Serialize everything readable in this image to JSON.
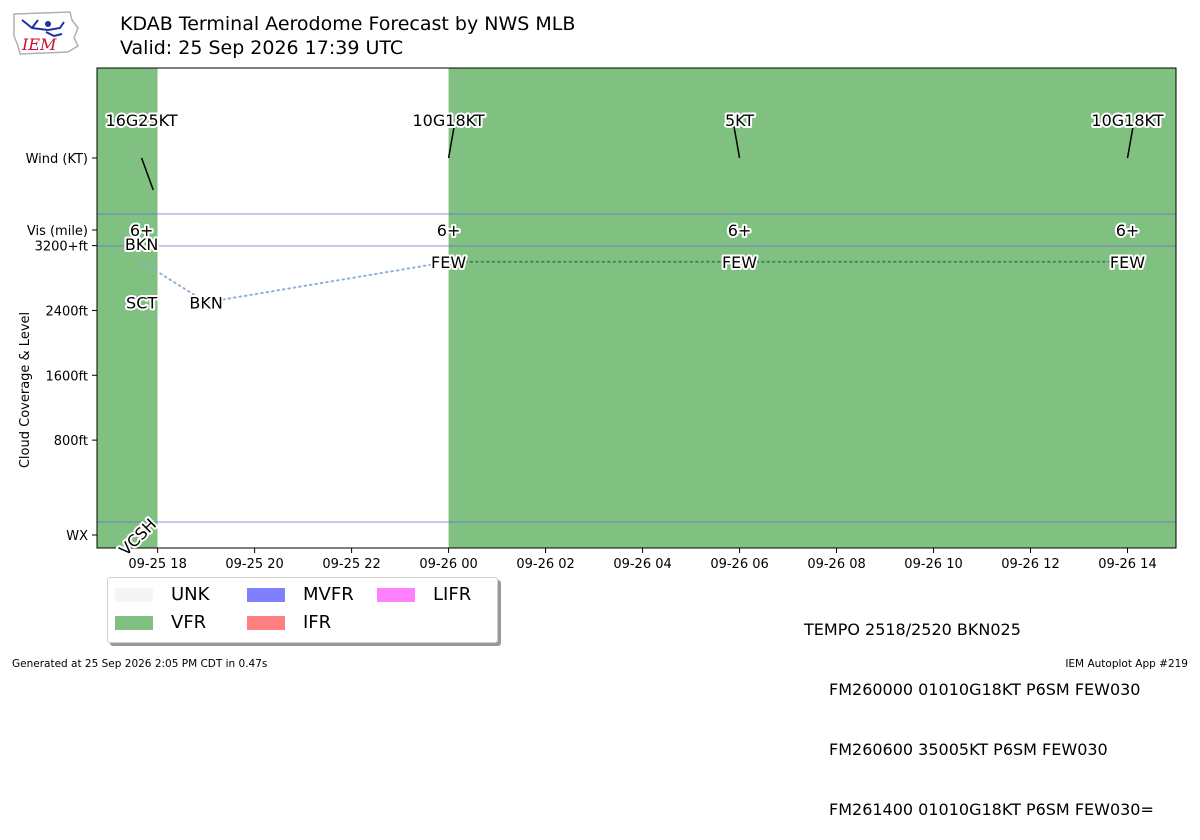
{
  "header": {
    "title_line1": "KDAB Terminal Aerodome Forecast by NWS MLB",
    "title_line2": "Valid: 25 Sep 2026 17:39 UTC",
    "logo_text": "IEM"
  },
  "footer": {
    "generated": "Generated at 25 Sep 2026 2:05 PM CDT in 0.47s",
    "app": "IEM Autoplot App #219"
  },
  "taf_text": [
    "TEMPO 2518/2520 BKN025",
    "FM260000 01010G18KT P6SM FEW030",
    "FM260600 35005KT P6SM FEW030",
    "FM261400 01010G18KT P6SM FEW030="
  ],
  "legend": [
    {
      "label": "UNK",
      "color": "#f5f5f5"
    },
    {
      "label": "VFR",
      "color": "#80c080"
    },
    {
      "label": "MVFR",
      "color": "#8080ff"
    },
    {
      "label": "IFR",
      "color": "#ff8080"
    },
    {
      "label": "LIFR",
      "color": "#ff80ff"
    }
  ],
  "chart_data": {
    "type": "timeline",
    "x_unit": "hours after 2026-09-25 00:00 UTC",
    "x_range": [
      16.75,
      39.0
    ],
    "x_ticks": [
      {
        "x": 18,
        "label": "09-25 18"
      },
      {
        "x": 20,
        "label": "09-25 20"
      },
      {
        "x": 22,
        "label": "09-25 22"
      },
      {
        "x": 24,
        "label": "09-26 00"
      },
      {
        "x": 26,
        "label": "09-26 02"
      },
      {
        "x": 28,
        "label": "09-26 04"
      },
      {
        "x": 30,
        "label": "09-26 06"
      },
      {
        "x": 32,
        "label": "09-26 08"
      },
      {
        "x": 34,
        "label": "09-26 10"
      },
      {
        "x": 36,
        "label": "09-26 12"
      },
      {
        "x": 38,
        "label": "09-26 14"
      }
    ],
    "y_label": "Cloud Coverage & Level",
    "y_range": [
      -1000,
      3800
    ],
    "y_ticks": [
      {
        "y": 3200,
        "label": "3200+ft"
      },
      {
        "y": 2400,
        "label": "2400ft"
      },
      {
        "y": 1600,
        "label": "1600ft"
      },
      {
        "y": 800,
        "label": "800ft"
      },
      {
        "y": 0,
        "label": ""
      }
    ],
    "rows": [
      {
        "name": "wind",
        "label": "Wind (KT)"
      },
      {
        "name": "vis",
        "label": "Vis (mile)"
      },
      {
        "name": "wx",
        "label": "WX"
      }
    ],
    "flight_category_spans": [
      {
        "start": 16.75,
        "end": 18.0,
        "category": "VFR",
        "color": "#80c080"
      },
      {
        "start": 18.0,
        "end": 24.0,
        "category": "UNK",
        "color": "#ffffff"
      },
      {
        "start": 24.0,
        "end": 39.0,
        "category": "VFR",
        "color": "#80c080"
      }
    ],
    "wind": [
      {
        "x": 17.67,
        "label": "16G25KT",
        "direction": 160
      },
      {
        "x": 24.0,
        "label": "10G18KT",
        "direction": 10
      },
      {
        "x": 30.0,
        "label": "5KT",
        "direction": 350
      },
      {
        "x": 38.0,
        "label": "10G18KT",
        "direction": 10
      }
    ],
    "visibility": [
      {
        "x": 17.67,
        "label": "6+"
      },
      {
        "x": 24.0,
        "label": "6+"
      },
      {
        "x": 30.0,
        "label": "6+"
      },
      {
        "x": 38.0,
        "label": "6+"
      }
    ],
    "clouds": [
      {
        "x": 17.67,
        "level": 3000,
        "coverage": "BKN"
      },
      {
        "x": 17.67,
        "level": 2500,
        "coverage": "SCT"
      },
      {
        "x": 19.0,
        "level": 2500,
        "coverage": "BKN"
      },
      {
        "x": 24.0,
        "level": 3000,
        "coverage": "FEW"
      },
      {
        "x": 30.0,
        "level": 3000,
        "coverage": "FEW"
      },
      {
        "x": 38.0,
        "level": 3000,
        "coverage": "FEW"
      }
    ],
    "cloud_line_tempo": [
      {
        "x": 17.67,
        "level": 3000
      },
      {
        "x": 19.0,
        "level": 2500
      },
      {
        "x": 24.0,
        "level": 3000
      }
    ],
    "cloud_line_main": [
      {
        "x": 24.0,
        "level": 3000
      },
      {
        "x": 38.0,
        "level": 3000
      }
    ],
    "weather": [
      {
        "x": 17.67,
        "label": "VCSH"
      }
    ]
  }
}
